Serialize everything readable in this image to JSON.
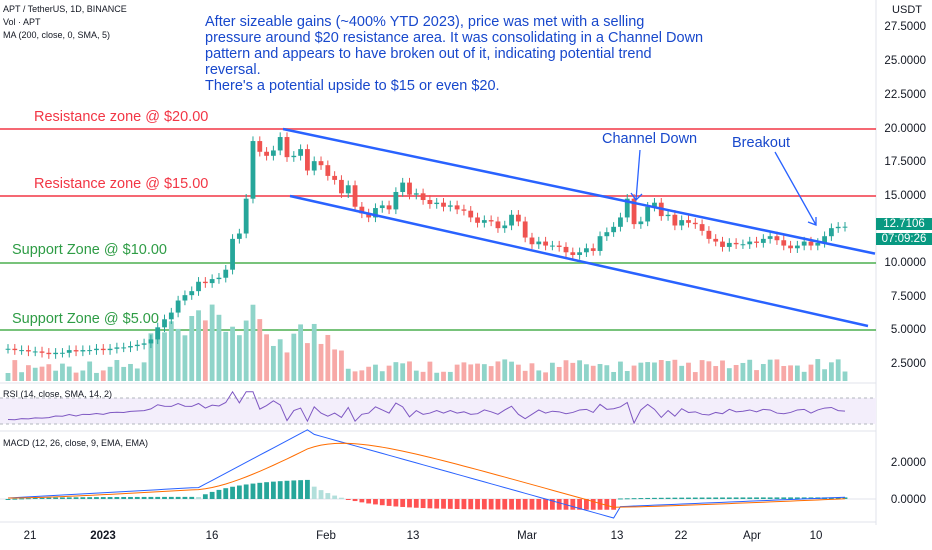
{
  "header": {
    "symbol_line": "APT / TetherUS, 1D, BINANCE",
    "vol_line": "Vol · APT",
    "ma_line": "MA (200, close, 0, SMA, 5)",
    "currency": "USDT"
  },
  "note": {
    "lines": [
      "After sizeable gains (~400% YTD 2023), price was met with a selling",
      "pressure around $20 resistance area. It was consolidating in a Channel Down",
      "pattern and appears to have broken out of it, indicating potential trend",
      "reversal.",
      "There's a potential upside to $15 or even $20."
    ]
  },
  "zones": {
    "r20": "Resistance zone @ $20.00",
    "r15": "Resistance zone @ $15.00",
    "s10": "Support Zone @ $10.00",
    "s5": "Support Zone @ $5.00"
  },
  "annotations": {
    "channel": "Channel Down",
    "breakout": "Breakout"
  },
  "price_tag": {
    "price": "12.7106",
    "countdown": "07:09:26"
  },
  "indicators": {
    "rsi_label": "RSI (14, close, SMA, 14, 2)",
    "macd_label": "MACD (12, 26, close, 9, EMA, EMA)"
  },
  "y_axis": {
    "price_ticks": [
      "27.5000",
      "25.0000",
      "22.5000",
      "20.0000",
      "17.5000",
      "15.0000",
      "10.0000",
      "7.5000",
      "5.0000",
      "2.5000"
    ],
    "macd_ticks": [
      "2.0000",
      "0.0000"
    ]
  },
  "x_axis": {
    "ticks": [
      "21",
      "2023",
      "16",
      "Feb",
      "13",
      "Mar",
      "13",
      "22",
      "Apr",
      "10"
    ]
  },
  "colors": {
    "up": "#26a69a",
    "down": "#ef5350",
    "channel": "#2962ff",
    "resistance": "#f23645",
    "support": "#4caf50",
    "note": "#1848cc"
  },
  "chart_data": {
    "type": "candlestick",
    "timeframe": "1D",
    "y_range": [
      2.0,
      28.0
    ],
    "horizontal_levels": [
      {
        "label": "Resistance zone @ $20.00",
        "value": 20.0
      },
      {
        "label": "Resistance zone @ $15.00",
        "value": 15.0
      },
      {
        "label": "Support Zone @ $10.00",
        "value": 10.0
      },
      {
        "label": "Support Zone @ $5.00",
        "value": 5.0
      }
    ],
    "close_approx": [
      3.6,
      3.5,
      3.5,
      3.4,
      3.4,
      3.3,
      3.2,
      3.3,
      3.3,
      3.5,
      3.4,
      3.5,
      3.5,
      3.6,
      3.5,
      3.6,
      3.7,
      3.7,
      3.8,
      3.9,
      4.0,
      4.3,
      5.2,
      5.8,
      6.3,
      7.2,
      7.6,
      7.9,
      8.6,
      8.5,
      8.8,
      8.9,
      9.5,
      11.8,
      12.2,
      14.8,
      19.1,
      18.3,
      18.0,
      18.4,
      19.4,
      17.9,
      18.0,
      18.5,
      16.9,
      17.6,
      17.3,
      16.5,
      16.2,
      15.2,
      15.8,
      14.2,
      13.7,
      13.4,
      14.1,
      14.3,
      14.0,
      15.3,
      16.0,
      15.1,
      15.2,
      14.7,
      14.4,
      14.5,
      14.2,
      14.3,
      14.0,
      13.9,
      13.4,
      13.0,
      13.2,
      13.1,
      12.6,
      12.8,
      13.6,
      13.1,
      11.9,
      11.4,
      11.6,
      11.3,
      11.3,
      11.2,
      10.8,
      10.6,
      10.8,
      11.1,
      10.9,
      12.0,
      12.3,
      12.7,
      13.4,
      14.8,
      12.9,
      13.1,
      14.2,
      14.5,
      13.5,
      13.6,
      12.8,
      13.2,
      13.0,
      12.9,
      12.4,
      11.8,
      11.6,
      11.2,
      11.5,
      11.4,
      11.4,
      11.6,
      11.5,
      11.8,
      12.0,
      11.7,
      11.3,
      11.1,
      11.3,
      11.6,
      11.3,
      11.5,
      12.0,
      12.6,
      12.7,
      12.7106
    ],
    "channel_down": [
      {
        "from": {
          "date": "2023-01-26",
          "price": 20.0
        },
        "to": {
          "date": "2023-04-15",
          "price": 10.7
        }
      },
      {
        "from": {
          "date": "2023-01-26",
          "price": 15.0
        },
        "to": {
          "date": "2023-04-15",
          "price": 5.3
        }
      }
    ],
    "rsi_range": [
      20,
      80
    ],
    "macd_range": [
      -1.2,
      3.6
    ],
    "macd_ticks": [
      2.0,
      0.0
    ]
  }
}
